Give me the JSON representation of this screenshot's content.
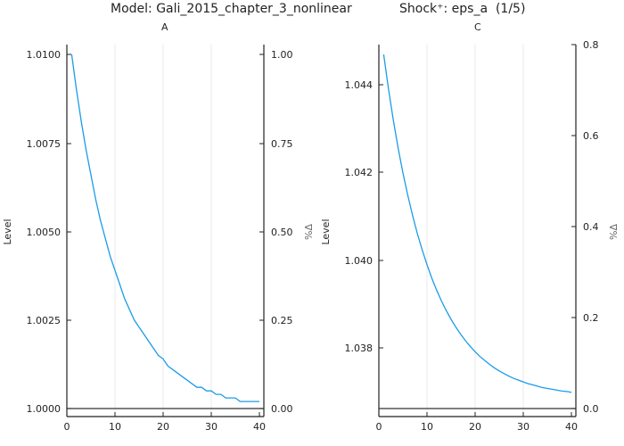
{
  "header": {
    "model": "Model: Gali_2015_chapter_3_nonlinear",
    "shock": "Shock⁺: eps_a  (1/5)"
  },
  "colors": {
    "line": "#1a9ce8",
    "axis": "#222222",
    "grid": "#e8e8e8",
    "zero": "#333333"
  },
  "chart_data": [
    {
      "type": "line",
      "title": "A",
      "xlabel": "",
      "ylabel": "Level",
      "ylabel_right": "%Δ",
      "x": [
        1,
        2,
        3,
        4,
        5,
        6,
        7,
        8,
        9,
        10,
        11,
        12,
        13,
        14,
        15,
        16,
        17,
        18,
        19,
        20,
        21,
        22,
        23,
        24,
        25,
        26,
        27,
        28,
        29,
        30,
        31,
        32,
        33,
        34,
        35,
        36,
        37,
        38,
        39,
        40
      ],
      "series": [
        {
          "name": "A",
          "values": [
            1.01,
            1.009,
            1.0081,
            1.0073,
            1.0066,
            1.0059,
            1.0053,
            1.0048,
            1.0043,
            1.0039,
            1.0035,
            1.0031,
            1.0028,
            1.0025,
            1.0023,
            1.0021,
            1.0019,
            1.0017,
            1.0015,
            1.0014,
            1.0012,
            1.0011,
            1.001,
            1.0009,
            1.0008,
            1.0007,
            1.0006,
            1.0006,
            1.0005,
            1.0005,
            1.0004,
            1.0004,
            1.0003,
            1.0003,
            1.0003,
            1.0002,
            1.0002,
            1.0002,
            1.0002,
            1.0002
          ]
        }
      ],
      "xticks": [
        "0",
        "10",
        "20",
        "30",
        "40"
      ],
      "yticks_left": [
        "1.0000",
        "1.0025",
        "1.0050",
        "1.0075",
        "1.0100"
      ],
      "yticks_right": [
        "0.00",
        "0.25",
        "0.50",
        "0.75",
        "1.00"
      ],
      "xlim": [
        0,
        40
      ],
      "ylim": [
        0.99975,
        1.01025
      ],
      "steady_state": 1.0,
      "grid": true
    },
    {
      "type": "line",
      "title": "C",
      "xlabel": "",
      "ylabel": "Level",
      "ylabel_right": "%Δ",
      "x": [
        1,
        2,
        3,
        4,
        5,
        6,
        7,
        8,
        9,
        10,
        11,
        12,
        13,
        14,
        15,
        16,
        17,
        18,
        19,
        20,
        21,
        22,
        23,
        24,
        25,
        26,
        27,
        28,
        29,
        30,
        31,
        32,
        33,
        34,
        35,
        36,
        37,
        38,
        39,
        40
      ],
      "series": [
        {
          "name": "C",
          "values": [
            1.0447,
            1.04391,
            1.0432,
            1.04256,
            1.04199,
            1.04148,
            1.04102,
            1.0406,
            1.04023,
            1.03989,
            1.03958,
            1.03931,
            1.03906,
            1.03884,
            1.03864,
            1.03846,
            1.0383,
            1.03815,
            1.03802,
            1.0379,
            1.03779,
            1.0377,
            1.03761,
            1.03753,
            1.03746,
            1.0374,
            1.03734,
            1.03729,
            1.03725,
            1.03721,
            1.03717,
            1.03714,
            1.03711,
            1.03708,
            1.03706,
            1.03704,
            1.03702,
            1.037,
            1.03699,
            1.03697
          ]
        }
      ],
      "xticks": [
        "0",
        "10",
        "20",
        "30",
        "40"
      ],
      "yticks_left": [
        "1.038",
        "1.040",
        "1.042",
        "1.044"
      ],
      "yticks_right": [
        "0.0",
        "0.2",
        "0.4",
        "0.6",
        "0.8"
      ],
      "xlim": [
        0,
        40
      ],
      "ylim": [
        1.0366,
        1.0451
      ],
      "steady_state": 1.0366,
      "grid": true
    }
  ]
}
